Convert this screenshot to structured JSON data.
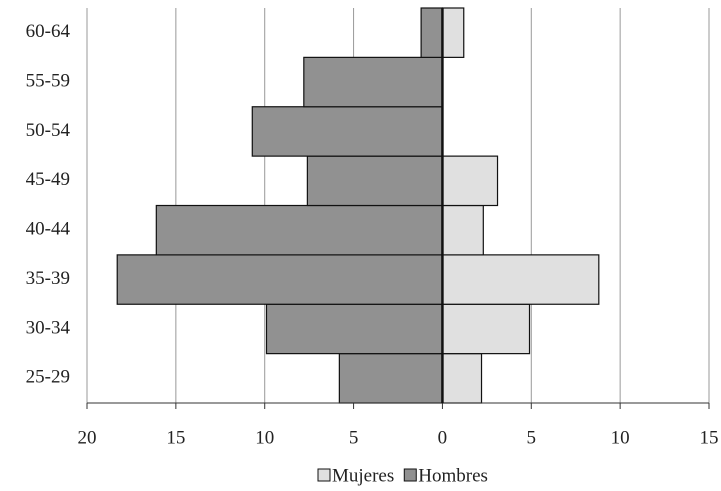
{
  "chart_data": {
    "type": "bar",
    "orientation": "horizontal",
    "categories": [
      "25-29",
      "30-34",
      "35-39",
      "40-44",
      "45-49",
      "50-54",
      "55-59",
      "60-64"
    ],
    "series": [
      {
        "name": "Mujeres",
        "color": "#e0e0e0",
        "values": [
          2.2,
          4.9,
          8.8,
          2.3,
          3.1,
          0,
          0,
          1.2
        ]
      },
      {
        "name": "Hombres",
        "color": "#919191",
        "values": [
          -5.8,
          -9.9,
          -18.3,
          -16.1,
          -7.6,
          -10.7,
          -7.8,
          -1.2
        ]
      }
    ],
    "xlim": [
      -20,
      15
    ],
    "xticks": [
      {
        "value": -20,
        "label": "20"
      },
      {
        "value": -15,
        "label": "15"
      },
      {
        "value": -10,
        "label": "10"
      },
      {
        "value": -5,
        "label": "5"
      },
      0,
      5,
      10,
      15
    ],
    "grid": true,
    "legend": "bottom"
  }
}
